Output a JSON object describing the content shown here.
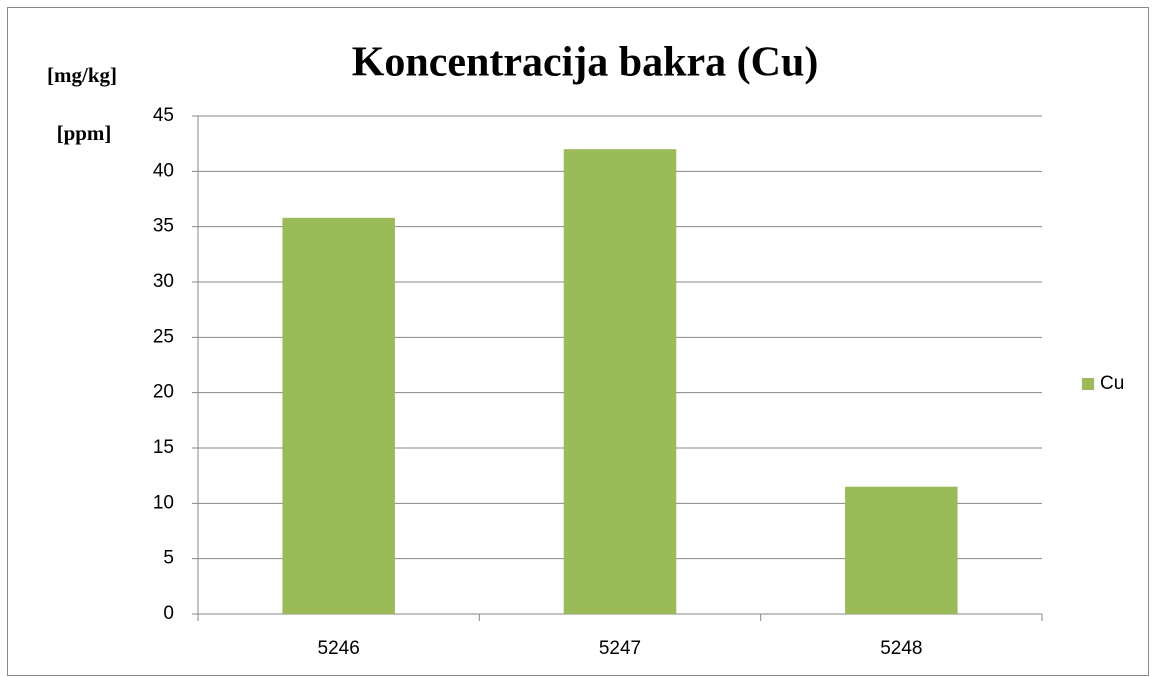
{
  "chart_data": {
    "type": "bar",
    "title": "Koncentracija bakra (Cu)",
    "y_axis_labels": [
      "[mg/kg]",
      "[ppm]"
    ],
    "categories": [
      "5246",
      "5247",
      "5248"
    ],
    "series": [
      {
        "name": "Cu",
        "color": "#9bbb59",
        "values": [
          35.8,
          42,
          11.5
        ]
      }
    ],
    "ylim": [
      0,
      45
    ],
    "yticks": [
      0,
      5,
      10,
      15,
      20,
      25,
      30,
      35,
      40,
      45
    ],
    "grid": true,
    "legend": "right"
  }
}
